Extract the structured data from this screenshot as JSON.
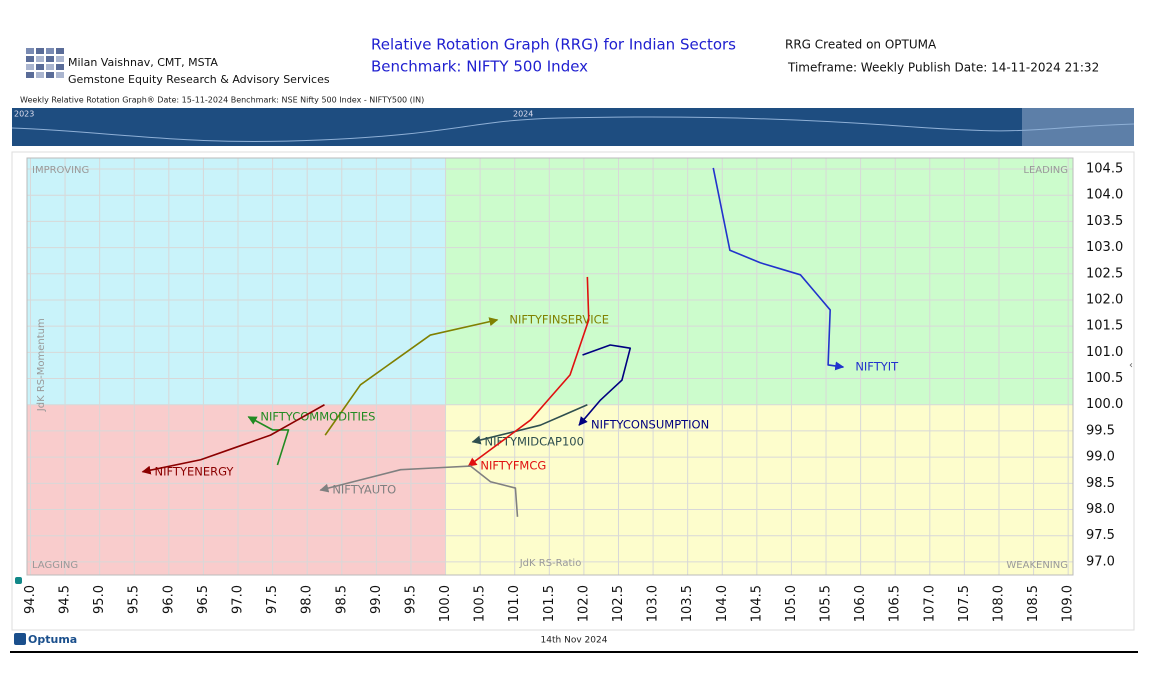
{
  "header": {
    "author": "Milan Vaishnav, CMT, MSTA",
    "company": "Gemstone Equity Research & Advisory Services",
    "title": "Relative Rotation Graph (RRG) for Indian Sectors",
    "subtitle": "Benchmark: NIFTY 500 Index",
    "created": "RRG Created on OPTUMA",
    "timeframe": "Timeframe: Weekly  Publish Date: 14-11-2024 21:32"
  },
  "info_line": "Weekly Relative Rotation Graph®   Date: 15-11-2024  Benchmark: NSE Nifty 500 Index - NIFTY500 (IN)",
  "timeline": {
    "labels": [
      "2023",
      "2024"
    ]
  },
  "footer": {
    "brand": "Optuma",
    "date": "14th Nov 2024"
  },
  "chart_data": {
    "type": "rrg",
    "quadrants": [
      "IMPROVING",
      "LEADING",
      "LAGGING",
      "WEAKENING"
    ],
    "quadrant_colors": [
      "#c9f3fa",
      "#ccfccc",
      "#f9cccc",
      "#fdfdcc"
    ],
    "center": [
      100,
      100
    ],
    "x_label": "JdK RS-Ratio",
    "y_label": "JdK RS-Momentum",
    "xlim": [
      93.95,
      109.07
    ],
    "ylim": [
      96.75,
      104.71
    ],
    "xticks": [
      {
        "value": 94,
        "label": "94.0"
      },
      94.5,
      {
        "value": 95,
        "label": "95.0"
      },
      95.5,
      {
        "value": 96,
        "label": "96.0"
      },
      96.5,
      {
        "value": 97,
        "label": "97.0"
      },
      97.5,
      {
        "value": 98,
        "label": "98.0"
      },
      98.5,
      {
        "value": 99,
        "label": "99.0"
      },
      99.5,
      {
        "value": 100,
        "label": "100.0"
      },
      100.5,
      {
        "value": 101,
        "label": "101.0"
      },
      101.5,
      {
        "value": 102,
        "label": "102.0"
      },
      102.5,
      {
        "value": 103,
        "label": "103.0"
      },
      103.5,
      {
        "value": 104,
        "label": "104.0"
      },
      104.5,
      {
        "value": 105,
        "label": "105.0"
      },
      105.5,
      {
        "value": 106,
        "label": "106.0"
      },
      106.5,
      {
        "value": 107,
        "label": "107.0"
      },
      107.5,
      {
        "value": 108,
        "label": "108.0"
      },
      108.5,
      {
        "value": 109,
        "label": "109.0"
      }
    ],
    "yticks": [
      {
        "value": 97,
        "label": "97.0"
      },
      97.5,
      {
        "value": 98,
        "label": "98.0"
      },
      98.5,
      {
        "value": 99,
        "label": "99.0"
      },
      99.5,
      {
        "value": 100,
        "label": "100.0"
      },
      100.5,
      {
        "value": 101,
        "label": "101.0"
      },
      101.5,
      {
        "value": 102,
        "label": "102.0"
      },
      102.5,
      {
        "value": 103,
        "label": "103.0"
      },
      103.5,
      {
        "value": 104,
        "label": "104.0"
      },
      104.5
    ],
    "grid": true,
    "series": [
      {
        "name": "NIFTYIT",
        "color": "#2233cc",
        "x": [
          103.87,
          104.11,
          104.55,
          105.13,
          105.56,
          105.53,
          105.75
        ],
        "y": [
          104.52,
          102.95,
          102.71,
          102.48,
          101.81,
          100.76,
          100.72
        ]
      },
      {
        "name": "NIFTYFINSERVICE",
        "color": "#808000",
        "x": [
          98.26,
          98.77,
          99.78,
          100.75
        ],
        "y": [
          99.42,
          100.38,
          101.33,
          101.62
        ]
      },
      {
        "name": "NIFTYCONSUMPTION",
        "color": "#000080",
        "x": [
          101.98,
          102.38,
          102.67,
          102.55,
          102.24,
          101.93
        ],
        "y": [
          100.95,
          101.14,
          101.08,
          100.47,
          100.09,
          99.61
        ]
      },
      {
        "name": "NIFTYMIDCAP100",
        "color": "#2f4f4f",
        "x": [
          102.05,
          101.37,
          100.39
        ],
        "y": [
          100.0,
          99.61,
          99.29
        ]
      },
      {
        "name": "NIFTYFMCG",
        "color": "#e01010",
        "x": [
          102.05,
          102.07,
          101.8,
          101.23,
          100.33
        ],
        "y": [
          102.44,
          101.62,
          100.57,
          99.71,
          98.83
        ]
      },
      {
        "name": "NIFTYAUTO",
        "color": "#808080",
        "x": [
          101.04,
          101.01,
          100.65,
          100.36,
          99.35,
          98.19
        ],
        "y": [
          97.86,
          98.41,
          98.53,
          98.83,
          98.76,
          98.37
        ]
      },
      {
        "name": "NIFTYCOMMODITIES",
        "color": "#228b22",
        "x": [
          97.57,
          97.73,
          97.5,
          97.15
        ],
        "y": [
          98.85,
          99.52,
          99.52,
          99.77
        ]
      },
      {
        "name": "NIFTYENERGY",
        "color": "#8b0000",
        "x": [
          98.25,
          97.47,
          96.46,
          95.62
        ],
        "y": [
          100.0,
          99.42,
          98.95,
          98.72
        ]
      }
    ]
  }
}
